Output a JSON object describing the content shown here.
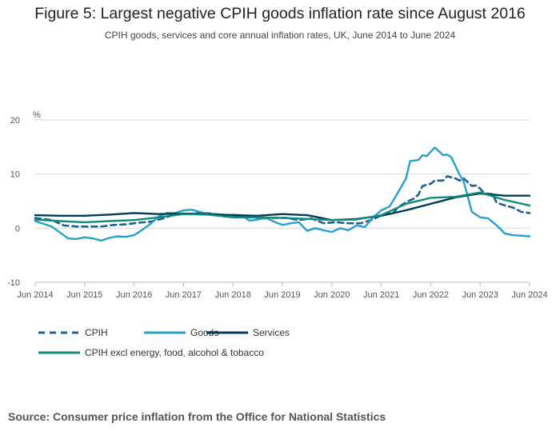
{
  "header": {
    "title": "Figure 5: Largest negative CPIH goods inflation rate since August 2016",
    "subtitle": "CPIH goods, services and core annual inflation rates, UK, June 2014 to June 2024"
  },
  "footer": {
    "source": "Source: Consumer price inflation from the Office for National Statistics"
  },
  "colors": {
    "cpih": "#206095",
    "goods": "#27a0cc",
    "services": "#003c57",
    "core": "#118c7b",
    "grid": "#d9d9d9",
    "axis": "#bbbbbb"
  },
  "chart_data": {
    "type": "line",
    "title": "Figure 5: Largest negative CPIH goods inflation rate since August 2016",
    "subtitle": "CPIH goods, services and core annual inflation rates, UK, June 2014 to June 2024",
    "ylabel": "%",
    "ylim": [
      -10,
      20
    ],
    "yticks": [
      -10,
      0,
      10,
      20
    ],
    "x_start": "Jun 2014",
    "x_end": "Jun 2024",
    "x_ticks": [
      "Jun 2014",
      "Jun 2015",
      "Jun 2016",
      "Jun 2017",
      "Jun 2018",
      "Jun 2019",
      "Jun 2020",
      "Jun 2021",
      "Jun 2022",
      "Jun 2023",
      "Jun 2024"
    ],
    "grid": "horizontal",
    "legend_position": "bottom",
    "series": [
      {
        "name": "CPIH",
        "style": "dashed",
        "color": "#206095",
        "points": [
          [
            "Jun 2014",
            1.9
          ],
          [
            "Oct 2014",
            1.5
          ],
          [
            "Jan 2015",
            0.5
          ],
          [
            "Apr 2015",
            0.3
          ],
          [
            "Jul 2015",
            0.3
          ],
          [
            "Oct 2015",
            0.3
          ],
          [
            "Jan 2016",
            0.6
          ],
          [
            "Apr 2016",
            0.7
          ],
          [
            "Jul 2016",
            1.0
          ],
          [
            "Oct 2016",
            1.2
          ],
          [
            "Jan 2017",
            1.8
          ],
          [
            "Apr 2017",
            2.6
          ],
          [
            "Jul 2017",
            2.6
          ],
          [
            "Oct 2017",
            2.8
          ],
          [
            "Jan 2018",
            2.7
          ],
          [
            "Apr 2018",
            2.2
          ],
          [
            "Jul 2018",
            2.3
          ],
          [
            "Oct 2018",
            2.2
          ],
          [
            "Jan 2019",
            1.8
          ],
          [
            "Apr 2019",
            1.9
          ],
          [
            "Jul 2019",
            1.9
          ],
          [
            "Oct 2019",
            1.5
          ],
          [
            "Jan 2020",
            1.8
          ],
          [
            "Apr 2020",
            0.9
          ],
          [
            "Jul 2020",
            1.1
          ],
          [
            "Oct 2020",
            0.9
          ],
          [
            "Jan 2021",
            0.9
          ],
          [
            "Apr 2021",
            1.6
          ],
          [
            "Jun 2021",
            2.4
          ],
          [
            "Sep 2021",
            2.9
          ],
          [
            "Oct 2021",
            3.8
          ],
          [
            "Dec 2021",
            4.8
          ],
          [
            "Feb 2022",
            5.5
          ],
          [
            "Mar 2022",
            6.2
          ],
          [
            "Apr 2022",
            7.8
          ],
          [
            "Jun 2022",
            8.2
          ],
          [
            "Jul 2022",
            8.8
          ],
          [
            "Sep 2022",
            8.8
          ],
          [
            "Oct 2022",
            9.6
          ],
          [
            "Dec 2022",
            9.2
          ],
          [
            "Jan 2023",
            8.8
          ],
          [
            "Feb 2023",
            9.2
          ],
          [
            "Apr 2023",
            7.8
          ],
          [
            "May 2023",
            7.9
          ],
          [
            "Jun 2023",
            7.3
          ],
          [
            "Jul 2023",
            6.4
          ],
          [
            "Sep 2023",
            6.3
          ],
          [
            "Oct 2023",
            4.7
          ],
          [
            "Dec 2023",
            4.2
          ],
          [
            "Feb 2024",
            3.8
          ],
          [
            "Apr 2024",
            3.0
          ],
          [
            "Jun 2024",
            2.8
          ]
        ]
      },
      {
        "name": "Goods",
        "style": "solid",
        "color": "#27a0cc",
        "points": [
          [
            "Jun 2014",
            1.3
          ],
          [
            "Aug 2014",
            0.8
          ],
          [
            "Oct 2014",
            0.3
          ],
          [
            "Dec 2014",
            -0.8
          ],
          [
            "Feb 2015",
            -1.9
          ],
          [
            "Apr 2015",
            -2.0
          ],
          [
            "Jun 2015",
            -1.7
          ],
          [
            "Aug 2015",
            -1.9
          ],
          [
            "Oct 2015",
            -2.3
          ],
          [
            "Dec 2015",
            -1.8
          ],
          [
            "Feb 2016",
            -1.5
          ],
          [
            "Apr 2016",
            -1.6
          ],
          [
            "Jun 2016",
            -1.3
          ],
          [
            "Aug 2016",
            -0.3
          ],
          [
            "Oct 2016",
            0.8
          ],
          [
            "Dec 2016",
            2.2
          ],
          [
            "Feb 2017",
            2.8
          ],
          [
            "Apr 2017",
            2.8
          ],
          [
            "Jun 2017",
            3.3
          ],
          [
            "Aug 2017",
            3.4
          ],
          [
            "Oct 2017",
            3.0
          ],
          [
            "Dec 2017",
            2.6
          ],
          [
            "Feb 2018",
            2.6
          ],
          [
            "Apr 2018",
            2.1
          ],
          [
            "Jun 2018",
            2.5
          ],
          [
            "Aug 2018",
            2.4
          ],
          [
            "Oct 2018",
            1.4
          ],
          [
            "Dec 2018",
            1.6
          ],
          [
            "Feb 2019",
            1.9
          ],
          [
            "Apr 2019",
            1.2
          ],
          [
            "Jun 2019",
            0.6
          ],
          [
            "Aug 2019",
            0.9
          ],
          [
            "Oct 2019",
            1.1
          ],
          [
            "Dec 2019",
            -0.5
          ],
          [
            "Feb 2020",
            0.0
          ],
          [
            "Apr 2020",
            -0.4
          ],
          [
            "Jun 2020",
            -0.7
          ],
          [
            "Aug 2020",
            0.0
          ],
          [
            "Oct 2020",
            -0.4
          ],
          [
            "Dec 2020",
            0.5
          ],
          [
            "Feb 2021",
            0.2
          ],
          [
            "Apr 2021",
            2.0
          ],
          [
            "Jun 2021",
            3.3
          ],
          [
            "Aug 2021",
            4.0
          ],
          [
            "Oct 2021",
            6.5
          ],
          [
            "Dec 2021",
            9.2
          ],
          [
            "Jan 2022",
            12.4
          ],
          [
            "Mar 2022",
            12.6
          ],
          [
            "Apr 2022",
            13.5
          ],
          [
            "May 2022",
            13.3
          ],
          [
            "Jul 2022",
            14.9
          ],
          [
            "Sep 2022",
            13.5
          ],
          [
            "Oct 2022",
            13.6
          ],
          [
            "Nov 2022",
            13.1
          ],
          [
            "Jan 2023",
            9.9
          ],
          [
            "Feb 2023",
            8.6
          ],
          [
            "Apr 2023",
            3.0
          ],
          [
            "Jun 2023",
            2.0
          ],
          [
            "Aug 2023",
            1.8
          ],
          [
            "Oct 2023",
            0.5
          ],
          [
            "Dec 2023",
            -1.0
          ],
          [
            "Feb 2024",
            -1.3
          ],
          [
            "Jun 2024",
            -1.5
          ]
        ]
      },
      {
        "name": "Services",
        "style": "solid",
        "color": "#003c57",
        "points": [
          [
            "Jun 2014",
            2.4
          ],
          [
            "Dec 2014",
            2.3
          ],
          [
            "Jun 2015",
            2.3
          ],
          [
            "Dec 2015",
            2.5
          ],
          [
            "Jun 2016",
            2.8
          ],
          [
            "Dec 2016",
            2.6
          ],
          [
            "Jun 2017",
            2.7
          ],
          [
            "Dec 2017",
            2.6
          ],
          [
            "Jun 2018",
            2.4
          ],
          [
            "Dec 2018",
            2.3
          ],
          [
            "Jun 2019",
            2.6
          ],
          [
            "Dec 2019",
            2.4
          ],
          [
            "Jun 2020",
            1.5
          ],
          [
            "Dec 2020",
            1.7
          ],
          [
            "Jun 2021",
            2.3
          ],
          [
            "Dec 2021",
            3.3
          ],
          [
            "Jun 2022",
            4.5
          ],
          [
            "Dec 2022",
            5.7
          ],
          [
            "Jun 2023",
            6.4
          ],
          [
            "Dec 2023",
            6.0
          ],
          [
            "Jun 2024",
            6.0
          ]
        ]
      },
      {
        "name": "CPIH excl energy, food, alcohol & tobacco",
        "style": "solid",
        "color": "#118c7b",
        "points": [
          [
            "Jun 2014",
            1.6
          ],
          [
            "Dec 2014",
            1.3
          ],
          [
            "Jun 2015",
            1.1
          ],
          [
            "Dec 2015",
            1.3
          ],
          [
            "Jun 2016",
            1.5
          ],
          [
            "Dec 2016",
            2.0
          ],
          [
            "Jun 2017",
            2.6
          ],
          [
            "Dec 2017",
            2.5
          ],
          [
            "Jun 2018",
            2.0
          ],
          [
            "Dec 2018",
            2.0
          ],
          [
            "Jun 2019",
            1.9
          ],
          [
            "Dec 2019",
            1.7
          ],
          [
            "Jun 2020",
            1.5
          ],
          [
            "Dec 2020",
            1.6
          ],
          [
            "Jun 2021",
            2.4
          ],
          [
            "Dec 2021",
            4.5
          ],
          [
            "Jun 2022",
            5.6
          ],
          [
            "Dec 2022",
            5.8
          ],
          [
            "Jun 2023",
            6.6
          ],
          [
            "Dec 2023",
            5.2
          ],
          [
            "Jun 2024",
            4.2
          ]
        ]
      }
    ]
  }
}
